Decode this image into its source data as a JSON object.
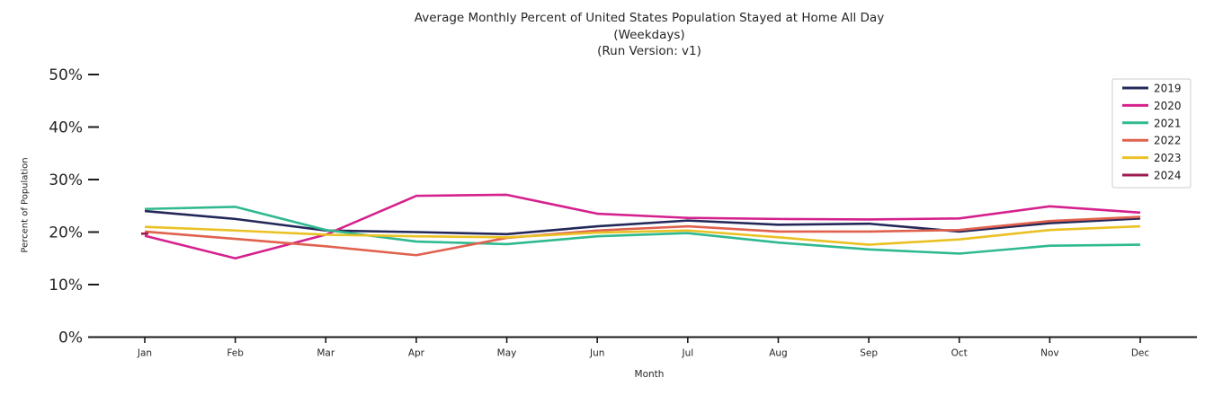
{
  "figure": {
    "title_line1": "Average Monthly Percent of United States Population Stayed at Home All Day",
    "title_line2": "(Weekdays)",
    "title_line3": "(Run Version: v1)",
    "x_axis_label": "Month",
    "y_axis_label": "Percent of Population"
  },
  "chart_data": {
    "type": "line",
    "title": "Average Monthly Percent of United States Population Stayed at Home All Day (Weekdays) (Run Version: v1)",
    "xlabel": "Month",
    "ylabel": "Percent of Population",
    "x_categories": [
      "Jan",
      "Feb",
      "Mar",
      "Apr",
      "May",
      "Jun",
      "Jul",
      "Aug",
      "Sep",
      "Oct",
      "Nov",
      "Dec"
    ],
    "y_tick_labels": [
      "0%",
      "10%",
      "20%",
      "30%",
      "40%",
      "50%"
    ],
    "ylim": [
      0,
      52
    ],
    "grid": false,
    "legend_position": "upper right",
    "axis_color": "#1a1a1a",
    "series": [
      {
        "name": "2019",
        "color": "#232859",
        "values": [
          24.0,
          22.5,
          20.3,
          20.0,
          19.6,
          21.1,
          22.2,
          21.4,
          21.6,
          20.1,
          21.7,
          22.6
        ]
      },
      {
        "name": "2020",
        "color": "#d5218d",
        "values": [
          19.3,
          15.0,
          19.5,
          26.9,
          27.1,
          23.5,
          22.7,
          22.5,
          22.4,
          22.6,
          24.9,
          23.7
        ]
      },
      {
        "name": "2021",
        "color": "#2eb98f",
        "values": [
          24.4,
          24.8,
          20.4,
          18.2,
          17.7,
          19.2,
          19.8,
          18.0,
          16.7,
          15.9,
          17.4,
          17.6
        ]
      },
      {
        "name": "2022",
        "color": "#e0614e",
        "values": [
          20.1,
          18.7,
          17.3,
          15.6,
          18.9,
          20.3,
          21.1,
          20.1,
          20.1,
          20.4,
          22.1,
          22.9
        ]
      },
      {
        "name": "2023",
        "color": "#eac124",
        "values": [
          21.0,
          20.3,
          19.5,
          19.2,
          19.0,
          19.9,
          20.3,
          19.0,
          17.6,
          18.6,
          20.4,
          21.1
        ]
      },
      {
        "name": "2024",
        "color": "#9c1a4f",
        "values": [
          19.7,
          null,
          null,
          null,
          null,
          null,
          null,
          null,
          null,
          null,
          null,
          null
        ]
      }
    ]
  }
}
